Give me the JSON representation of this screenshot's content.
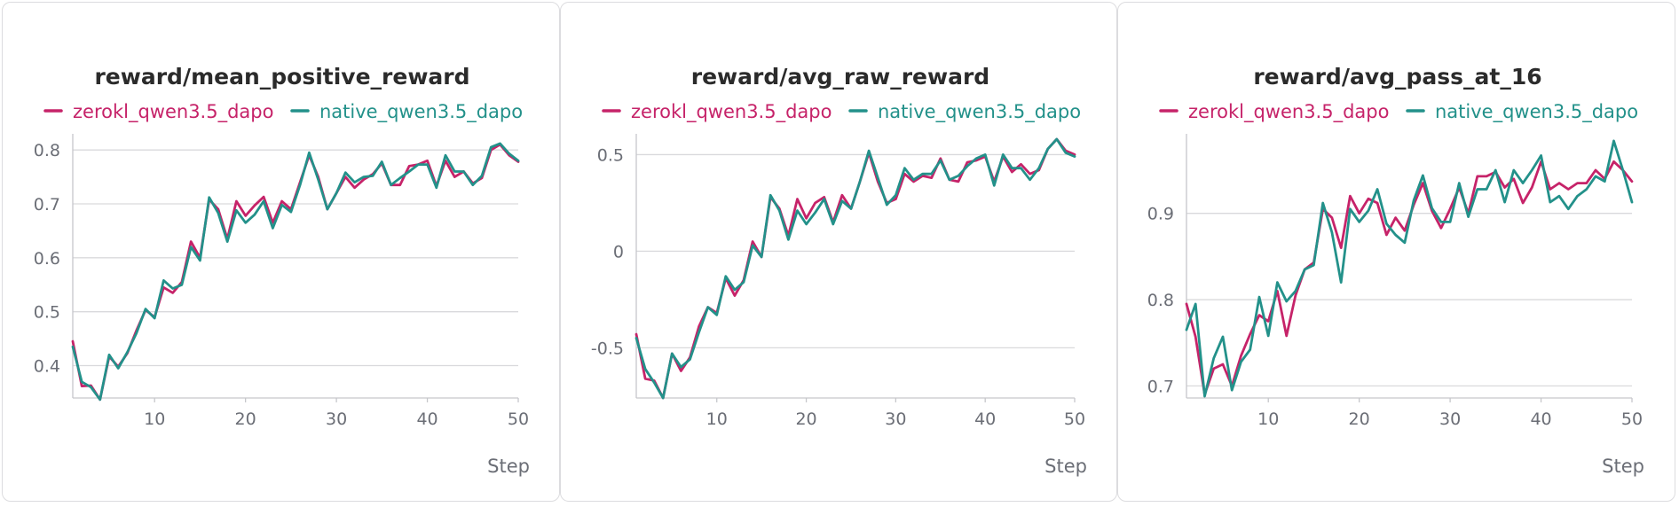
{
  "colors": {
    "zerokl": "#c62369",
    "native": "#23918a",
    "text": "#2b2b2b",
    "tick": "#6b6e76"
  },
  "chart_data": [
    {
      "type": "line",
      "title": "reward/mean_positive_reward",
      "xlabel": "Step",
      "ylabel": "",
      "xlim": [
        1,
        50
      ],
      "ylim": [
        0.34,
        0.82
      ],
      "xticks": [
        10,
        20,
        30,
        40,
        50
      ],
      "yticks": [
        0.4,
        0.5,
        0.6,
        0.7,
        0.8
      ],
      "ytick_labels": [
        "0.4",
        "0.5",
        "0.6",
        "0.7",
        "0.8"
      ],
      "grid": true,
      "legend": "top",
      "x": [
        1,
        2,
        3,
        4,
        5,
        6,
        7,
        8,
        9,
        10,
        11,
        12,
        13,
        14,
        15,
        16,
        17,
        18,
        19,
        20,
        21,
        22,
        23,
        24,
        25,
        26,
        27,
        28,
        29,
        30,
        31,
        32,
        33,
        34,
        35,
        36,
        37,
        38,
        39,
        40,
        41,
        42,
        43,
        44,
        45,
        46,
        47,
        48,
        49,
        50
      ],
      "series": [
        {
          "name": "zerokl_qwen3.5_dapo",
          "color": "#c62369",
          "values": [
            0.445,
            0.362,
            0.363,
            0.337,
            0.417,
            0.398,
            0.423,
            0.465,
            0.503,
            0.49,
            0.545,
            0.535,
            0.555,
            0.63,
            0.6,
            0.708,
            0.69,
            0.635,
            0.705,
            0.678,
            0.697,
            0.713,
            0.665,
            0.705,
            0.69,
            0.74,
            0.79,
            0.75,
            0.69,
            0.72,
            0.75,
            0.73,
            0.745,
            0.755,
            0.775,
            0.735,
            0.735,
            0.77,
            0.773,
            0.78,
            0.733,
            0.78,
            0.75,
            0.76,
            0.738,
            0.748,
            0.8,
            0.81,
            0.79,
            0.778
          ]
        },
        {
          "name": "native_qwen3.5_dapo",
          "color": "#23918a",
          "values": [
            0.435,
            0.37,
            0.36,
            0.337,
            0.42,
            0.395,
            0.425,
            0.46,
            0.505,
            0.488,
            0.558,
            0.543,
            0.55,
            0.62,
            0.595,
            0.712,
            0.683,
            0.63,
            0.688,
            0.665,
            0.68,
            0.705,
            0.655,
            0.698,
            0.685,
            0.735,
            0.795,
            0.745,
            0.69,
            0.72,
            0.758,
            0.74,
            0.75,
            0.752,
            0.778,
            0.735,
            0.748,
            0.76,
            0.773,
            0.773,
            0.73,
            0.79,
            0.76,
            0.76,
            0.735,
            0.752,
            0.805,
            0.812,
            0.793,
            0.78
          ]
        }
      ]
    },
    {
      "type": "line",
      "title": "reward/avg_raw_reward",
      "xlabel": "Step",
      "ylabel": "",
      "xlim": [
        1,
        50
      ],
      "ylim": [
        -0.76,
        0.58
      ],
      "xticks": [
        10,
        20,
        30,
        40,
        50
      ],
      "yticks": [
        -0.5,
        0,
        0.5
      ],
      "ytick_labels": [
        "-0.5",
        "0",
        "0.5"
      ],
      "grid": true,
      "legend": "top",
      "x": [
        1,
        2,
        3,
        4,
        5,
        6,
        7,
        8,
        9,
        10,
        11,
        12,
        13,
        14,
        15,
        16,
        17,
        18,
        19,
        20,
        21,
        22,
        23,
        24,
        25,
        26,
        27,
        28,
        29,
        30,
        31,
        32,
        33,
        34,
        35,
        36,
        37,
        38,
        39,
        40,
        41,
        42,
        43,
        44,
        45,
        46,
        47,
        48,
        49,
        50
      ],
      "series": [
        {
          "name": "zerokl_qwen3.5_dapo",
          "color": "#c62369",
          "values": [
            -0.43,
            -0.66,
            -0.67,
            -0.76,
            -0.53,
            -0.62,
            -0.55,
            -0.39,
            -0.29,
            -0.32,
            -0.14,
            -0.23,
            -0.15,
            0.05,
            -0.03,
            0.28,
            0.22,
            0.08,
            0.27,
            0.17,
            0.25,
            0.28,
            0.15,
            0.29,
            0.22,
            0.36,
            0.51,
            0.36,
            0.25,
            0.27,
            0.4,
            0.36,
            0.39,
            0.38,
            0.48,
            0.37,
            0.36,
            0.46,
            0.47,
            0.49,
            0.36,
            0.49,
            0.41,
            0.45,
            0.4,
            0.42,
            0.53,
            0.58,
            0.52,
            0.5
          ]
        },
        {
          "name": "native_qwen3.5_dapo",
          "color": "#23918a",
          "values": [
            -0.45,
            -0.61,
            -0.68,
            -0.76,
            -0.53,
            -0.6,
            -0.56,
            -0.42,
            -0.29,
            -0.33,
            -0.13,
            -0.2,
            -0.16,
            0.03,
            -0.03,
            0.29,
            0.21,
            0.06,
            0.21,
            0.14,
            0.2,
            0.27,
            0.14,
            0.26,
            0.22,
            0.36,
            0.52,
            0.38,
            0.24,
            0.29,
            0.43,
            0.37,
            0.4,
            0.4,
            0.47,
            0.37,
            0.39,
            0.44,
            0.48,
            0.5,
            0.34,
            0.5,
            0.43,
            0.43,
            0.37,
            0.43,
            0.53,
            0.58,
            0.51,
            0.49
          ]
        }
      ]
    },
    {
      "type": "line",
      "title": "reward/avg_pass_at_16",
      "xlabel": "Step",
      "ylabel": "",
      "xlim": [
        1,
        50
      ],
      "ylim": [
        0.686,
        0.986
      ],
      "xticks": [
        10,
        20,
        30,
        40,
        50
      ],
      "yticks": [
        0.7,
        0.8,
        0.9
      ],
      "ytick_labels": [
        "0.7",
        "0.8",
        "0.9"
      ],
      "grid": true,
      "legend": "top",
      "x": [
        1,
        2,
        3,
        4,
        5,
        6,
        7,
        8,
        9,
        10,
        11,
        12,
        13,
        14,
        15,
        16,
        17,
        18,
        19,
        20,
        21,
        22,
        23,
        24,
        25,
        26,
        27,
        28,
        29,
        30,
        31,
        32,
        33,
        34,
        35,
        36,
        37,
        38,
        39,
        40,
        41,
        42,
        43,
        44,
        45,
        46,
        47,
        48,
        49,
        50
      ],
      "series": [
        {
          "name": "zerokl_qwen3.5_dapo",
          "color": "#c62369",
          "values": [
            0.795,
            0.757,
            0.69,
            0.72,
            0.725,
            0.7,
            0.735,
            0.76,
            0.782,
            0.775,
            0.81,
            0.758,
            0.805,
            0.835,
            0.843,
            0.905,
            0.895,
            0.86,
            0.92,
            0.9,
            0.917,
            0.912,
            0.875,
            0.895,
            0.88,
            0.91,
            0.935,
            0.903,
            0.883,
            0.905,
            0.93,
            0.9,
            0.943,
            0.943,
            0.948,
            0.93,
            0.94,
            0.912,
            0.93,
            0.96,
            0.928,
            0.935,
            0.928,
            0.935,
            0.935,
            0.95,
            0.94,
            0.96,
            0.95,
            0.937
          ]
        },
        {
          "name": "native_qwen3.5_dapo",
          "color": "#23918a",
          "values": [
            0.765,
            0.795,
            0.688,
            0.732,
            0.757,
            0.695,
            0.728,
            0.742,
            0.803,
            0.758,
            0.82,
            0.798,
            0.81,
            0.835,
            0.84,
            0.912,
            0.878,
            0.82,
            0.905,
            0.89,
            0.903,
            0.928,
            0.888,
            0.875,
            0.866,
            0.915,
            0.944,
            0.906,
            0.89,
            0.89,
            0.935,
            0.896,
            0.928,
            0.928,
            0.95,
            0.913,
            0.95,
            0.935,
            0.95,
            0.967,
            0.913,
            0.92,
            0.905,
            0.92,
            0.928,
            0.943,
            0.937,
            0.984,
            0.95,
            0.913
          ]
        }
      ]
    }
  ]
}
